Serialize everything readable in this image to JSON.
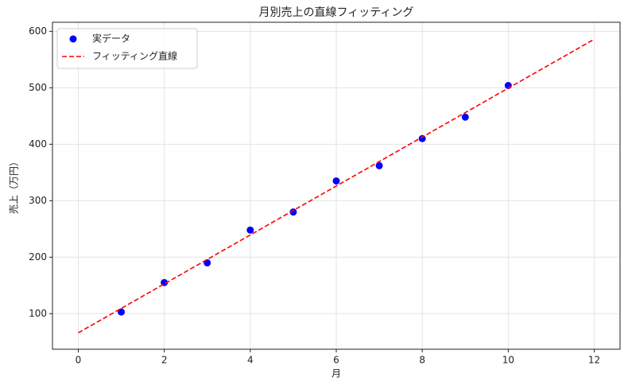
{
  "chart_data": {
    "type": "scatter",
    "title": "月別売上の直線フィッティング",
    "xlabel": "月",
    "ylabel": "売上（万円）",
    "xlim": [
      -0.6,
      12.6
    ],
    "ylim": [
      37,
      616
    ],
    "xticks": [
      0,
      2,
      4,
      6,
      8,
      10,
      12
    ],
    "yticks": [
      100,
      200,
      300,
      400,
      500,
      600
    ],
    "grid": true,
    "legend": "upper left",
    "series": [
      {
        "name": "実データ",
        "type": "scatter",
        "color": "#0000ff",
        "x": [
          1,
          2,
          3,
          4,
          5,
          6,
          7,
          8,
          9,
          10
        ],
        "values": [
          103,
          155,
          190,
          248,
          280,
          335,
          362,
          410,
          448,
          504
        ]
      },
      {
        "name": "フィッティング直線",
        "type": "line",
        "color": "#ff0000",
        "linestyle": "dashed",
        "x": [
          0,
          12
        ],
        "values": [
          66,
          586
        ]
      }
    ]
  }
}
